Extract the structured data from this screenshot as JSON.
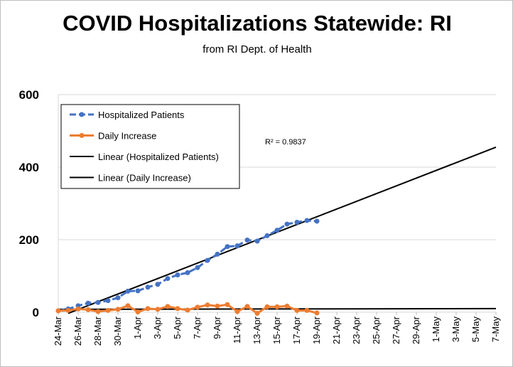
{
  "title": "COVID Hospitalizations Statewide: RI",
  "subtitle": "from RI Dept. of Health",
  "annotation": "R² = 0.9837",
  "chart_data": {
    "type": "line",
    "ylim": [
      0,
      600
    ],
    "yticks": [
      0,
      200,
      400,
      600
    ],
    "x_start_day": 0,
    "x_end_day": 44,
    "x_tick_labels": [
      "24-Mar",
      "26-Mar",
      "28-Mar",
      "30-Mar",
      "1-Apr",
      "3-Apr",
      "5-Apr",
      "7-Apr",
      "9-Apr",
      "11-Apr",
      "13-Apr",
      "15-Apr",
      "17-Apr",
      "19-Apr",
      "21-Apr",
      "23-Apr",
      "25-Apr",
      "27-Apr",
      "29-Apr",
      "1-May",
      "3-May",
      "5-May",
      "7-May"
    ],
    "grid": "horizontal",
    "legend_position": "top-left",
    "legend": [
      "Hospitalized Patients",
      "Daily Increase",
      "Linear (Hospitalized Patients)",
      "Linear (Daily Increase)"
    ],
    "series": [
      {
        "name": "Hospitalized Patients",
        "color": "#4472c4",
        "style": "dashed-markers",
        "x": [
          0,
          1,
          2,
          3,
          4,
          5,
          6,
          7,
          8,
          9,
          10,
          11,
          12,
          13,
          14,
          15,
          16,
          17,
          18,
          19,
          20,
          21,
          22,
          23,
          24,
          25,
          26
        ],
        "values": [
          4,
          9,
          18,
          25,
          27,
          32,
          40,
          58,
          59,
          69,
          77,
          93,
          103,
          109,
          123,
          143,
          160,
          181,
          183,
          199,
          196,
          211,
          226,
          243,
          248,
          253,
          251
        ]
      },
      {
        "name": "Daily Increase",
        "color": "#ed7d31",
        "style": "solid-markers",
        "x": [
          0,
          1,
          2,
          3,
          4,
          5,
          6,
          7,
          8,
          9,
          10,
          11,
          12,
          13,
          14,
          15,
          16,
          17,
          18,
          19,
          20,
          21,
          22,
          23,
          24,
          25,
          26
        ],
        "values": [
          4,
          5,
          9,
          7,
          2,
          5,
          8,
          18,
          1,
          10,
          8,
          16,
          10,
          6,
          14,
          20,
          17,
          21,
          2,
          16,
          -3,
          15,
          15,
          17,
          5,
          5,
          -2
        ]
      }
    ],
    "trendlines": [
      {
        "name": "Linear (Hospitalized Patients)",
        "color": "#000000",
        "x": [
          1,
          44
        ],
        "values": [
          -3,
          455
        ],
        "r_squared": 0.9837
      },
      {
        "name": "Linear (Daily Increase)",
        "color": "#000000",
        "x": [
          0,
          44
        ],
        "values": [
          8,
          10
        ]
      }
    ]
  }
}
